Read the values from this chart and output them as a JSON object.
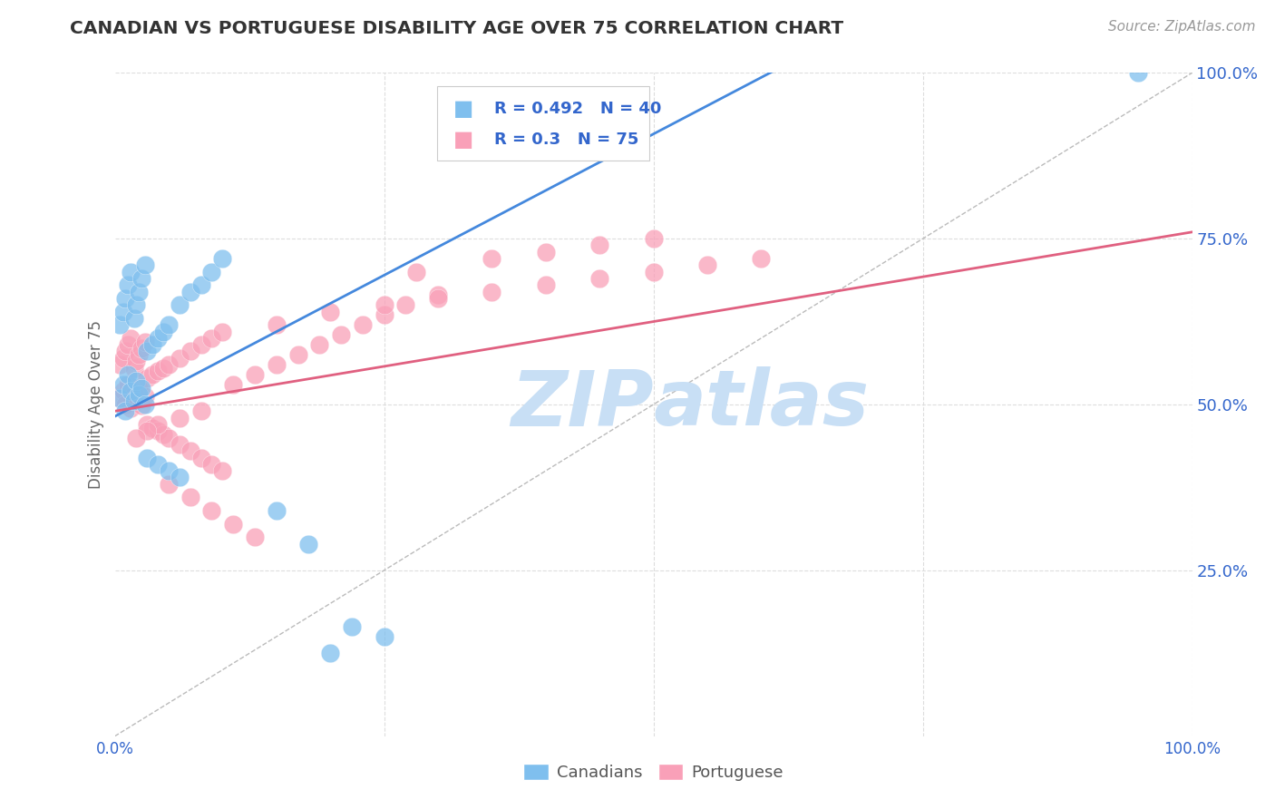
{
  "title": "CANADIAN VS PORTUGUESE DISABILITY AGE OVER 75 CORRELATION CHART",
  "source_text": "Source: ZipAtlas.com",
  "ylabel": "Disability Age Over 75",
  "xmin": 0.0,
  "xmax": 1.0,
  "ymin": 0.0,
  "ymax": 1.0,
  "ytick_values": [
    0.25,
    0.5,
    0.75,
    1.0
  ],
  "ytick_labels": [
    "25.0%",
    "50.0%",
    "75.0%",
    "100.0%"
  ],
  "grid_color": "#dddddd",
  "background_color": "#ffffff",
  "canadian_color": "#7fbfee",
  "portuguese_color": "#f9a0b8",
  "canadian_line_color": "#4488dd",
  "portuguese_line_color": "#e06080",
  "diag_line_color": "#bbbbbb",
  "canadian_R": 0.492,
  "canadian_N": 40,
  "portuguese_R": 0.3,
  "portuguese_N": 75,
  "legend_text_color": "#3366cc",
  "title_color": "#333333",
  "axis_label_color": "#666666",
  "tick_label_color": "#3366cc",
  "watermark_color": "#c8dff5",
  "canadians_label": "Canadians",
  "portuguese_label": "Portuguese",
  "canadian_points_x": [
    0.005,
    0.008,
    0.01,
    0.012,
    0.015,
    0.018,
    0.02,
    0.022,
    0.025,
    0.028,
    0.005,
    0.008,
    0.01,
    0.012,
    0.015,
    0.018,
    0.02,
    0.022,
    0.025,
    0.028,
    0.03,
    0.035,
    0.04,
    0.045,
    0.05,
    0.06,
    0.07,
    0.08,
    0.09,
    0.1,
    0.03,
    0.04,
    0.05,
    0.06,
    0.15,
    0.18,
    0.22,
    0.25,
    0.2,
    0.95
  ],
  "canadian_points_y": [
    0.51,
    0.53,
    0.49,
    0.545,
    0.52,
    0.505,
    0.535,
    0.515,
    0.525,
    0.5,
    0.62,
    0.64,
    0.66,
    0.68,
    0.7,
    0.63,
    0.65,
    0.67,
    0.69,
    0.71,
    0.58,
    0.59,
    0.6,
    0.61,
    0.62,
    0.65,
    0.67,
    0.68,
    0.7,
    0.72,
    0.42,
    0.41,
    0.4,
    0.39,
    0.34,
    0.29,
    0.165,
    0.15,
    0.125,
    1.0
  ],
  "portuguese_points_x": [
    0.005,
    0.008,
    0.01,
    0.012,
    0.015,
    0.018,
    0.02,
    0.022,
    0.025,
    0.028,
    0.005,
    0.008,
    0.01,
    0.012,
    0.015,
    0.018,
    0.02,
    0.022,
    0.025,
    0.028,
    0.03,
    0.035,
    0.04,
    0.045,
    0.05,
    0.06,
    0.07,
    0.08,
    0.09,
    0.1,
    0.03,
    0.035,
    0.04,
    0.045,
    0.05,
    0.06,
    0.07,
    0.08,
    0.09,
    0.1,
    0.11,
    0.13,
    0.15,
    0.17,
    0.19,
    0.21,
    0.23,
    0.25,
    0.27,
    0.3,
    0.15,
    0.2,
    0.25,
    0.3,
    0.35,
    0.4,
    0.45,
    0.5,
    0.55,
    0.6,
    0.08,
    0.06,
    0.04,
    0.03,
    0.02,
    0.05,
    0.07,
    0.09,
    0.11,
    0.13,
    0.28,
    0.35,
    0.4,
    0.45,
    0.5
  ],
  "portuguese_points_y": [
    0.51,
    0.52,
    0.5,
    0.53,
    0.495,
    0.515,
    0.505,
    0.525,
    0.498,
    0.512,
    0.56,
    0.57,
    0.58,
    0.59,
    0.6,
    0.555,
    0.565,
    0.575,
    0.585,
    0.595,
    0.54,
    0.545,
    0.55,
    0.555,
    0.56,
    0.57,
    0.58,
    0.59,
    0.6,
    0.61,
    0.47,
    0.465,
    0.46,
    0.455,
    0.45,
    0.44,
    0.43,
    0.42,
    0.41,
    0.4,
    0.53,
    0.545,
    0.56,
    0.575,
    0.59,
    0.605,
    0.62,
    0.635,
    0.65,
    0.665,
    0.62,
    0.64,
    0.65,
    0.66,
    0.67,
    0.68,
    0.69,
    0.7,
    0.71,
    0.72,
    0.49,
    0.48,
    0.47,
    0.46,
    0.45,
    0.38,
    0.36,
    0.34,
    0.32,
    0.3,
    0.7,
    0.72,
    0.73,
    0.74,
    0.75
  ],
  "blue_line_x0": 0.0,
  "blue_line_y0": 0.482,
  "blue_line_x1": 0.62,
  "blue_line_y1": 1.01,
  "pink_line_x0": 0.0,
  "pink_line_y0": 0.49,
  "pink_line_x1": 1.0,
  "pink_line_y1": 0.76
}
